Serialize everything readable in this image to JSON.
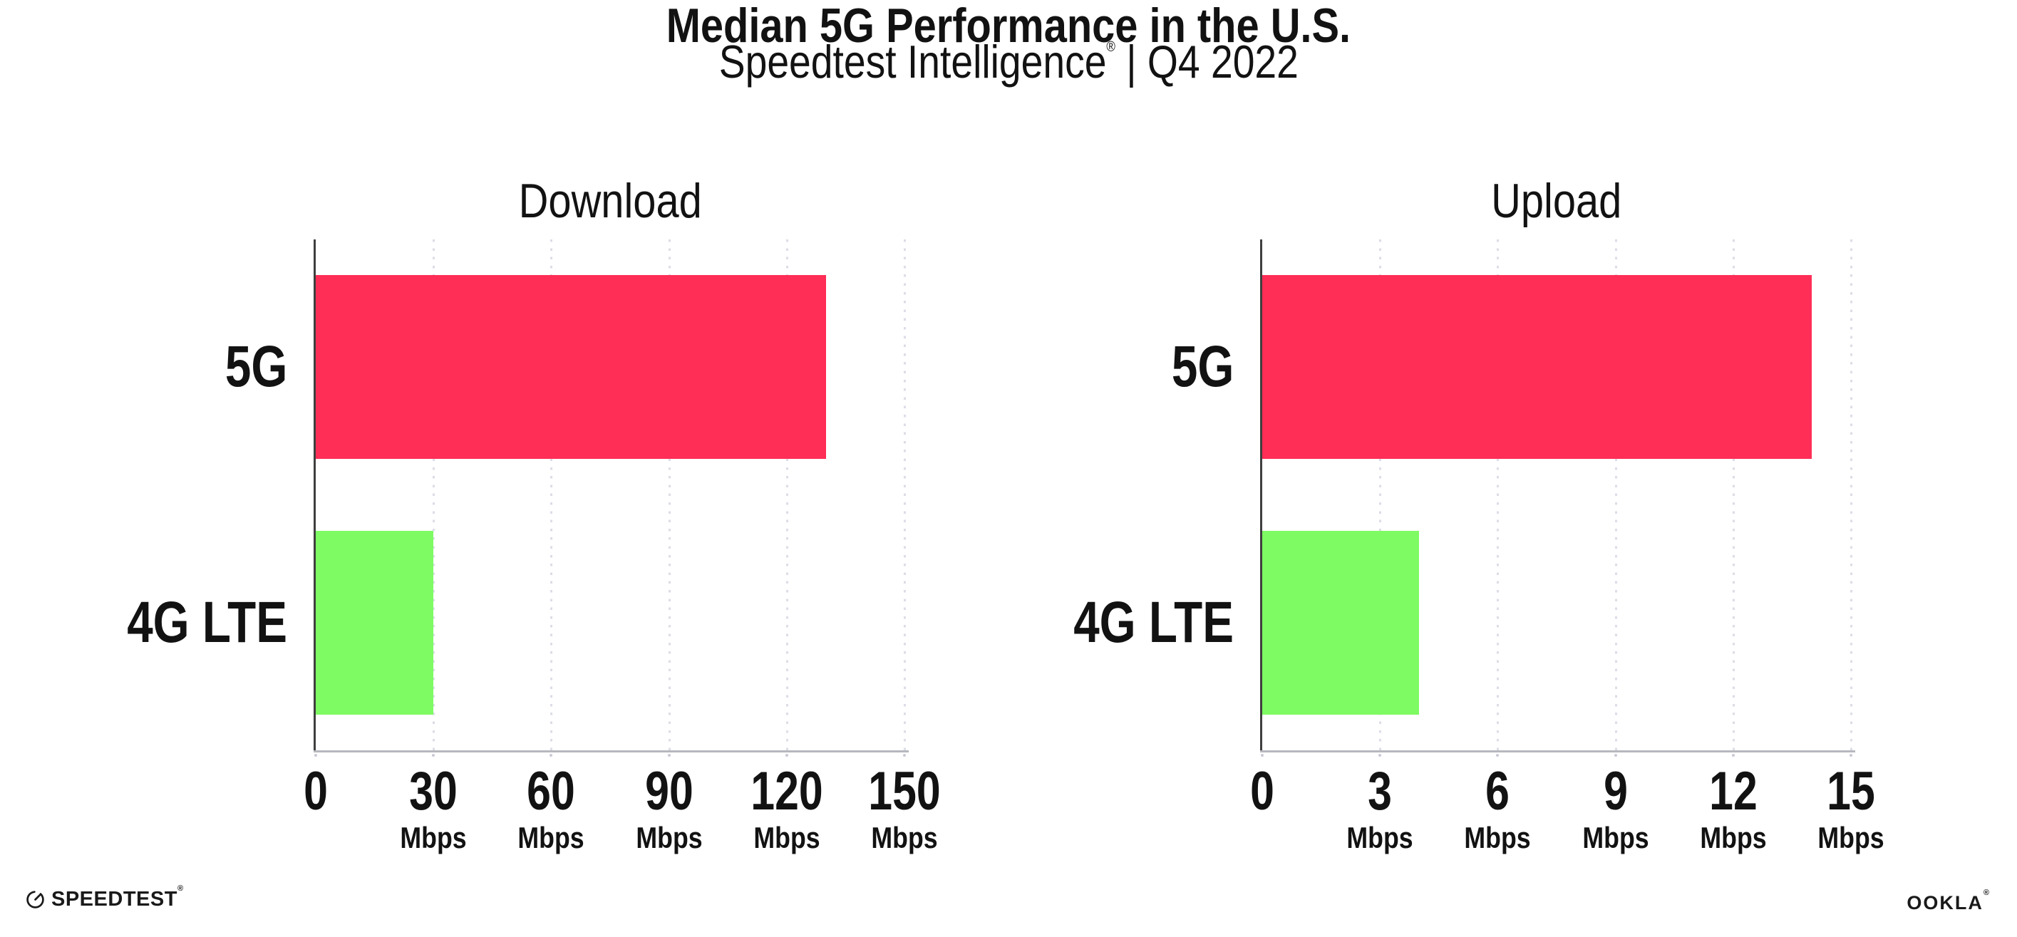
{
  "header": {
    "title": "Median 5G Performance in the U.S.",
    "subtitle_brand": "Speedtest Intelligence",
    "subtitle_reg": "®",
    "subtitle_sep": "|",
    "subtitle_period": "Q4 2022"
  },
  "footer": {
    "speedtest_label": "SPEEDTEST",
    "speedtest_reg": "®",
    "ookla_label": "OOKLA",
    "ookla_reg": "®"
  },
  "colors": {
    "bar_5g": "#FF2E56",
    "bar_4g_lte": "#7EFB63",
    "axis_line": "#3F3F3F",
    "baseline": "#B7B8BE",
    "gridline_dot": "#DCDDE7",
    "tick_dot": "#C9CAD4",
    "text": "#121212"
  },
  "chart_data": [
    {
      "type": "bar",
      "orientation": "horizontal",
      "title": "Download",
      "categories": [
        "5G",
        "4G LTE"
      ],
      "values": [
        130,
        30
      ],
      "unit": "Mbps",
      "xlim": [
        0,
        150
      ],
      "xticks": [
        0,
        30,
        60,
        90,
        120,
        150
      ],
      "tick_unit_label": "Mbps",
      "bar_colors": [
        "#FF2E56",
        "#7EFB63"
      ],
      "grid": "dotted-vertical-gridlines-at-ticks",
      "legend": "none"
    },
    {
      "type": "bar",
      "orientation": "horizontal",
      "title": "Upload",
      "categories": [
        "5G",
        "4G LTE"
      ],
      "values": [
        14,
        4
      ],
      "unit": "Mbps",
      "xlim": [
        0,
        15
      ],
      "xticks": [
        0,
        3,
        6,
        9,
        12,
        15
      ],
      "tick_unit_label": "Mbps",
      "bar_colors": [
        "#FF2E56",
        "#7EFB63"
      ],
      "grid": "dotted-vertical-gridlines-at-ticks",
      "legend": "none"
    }
  ]
}
